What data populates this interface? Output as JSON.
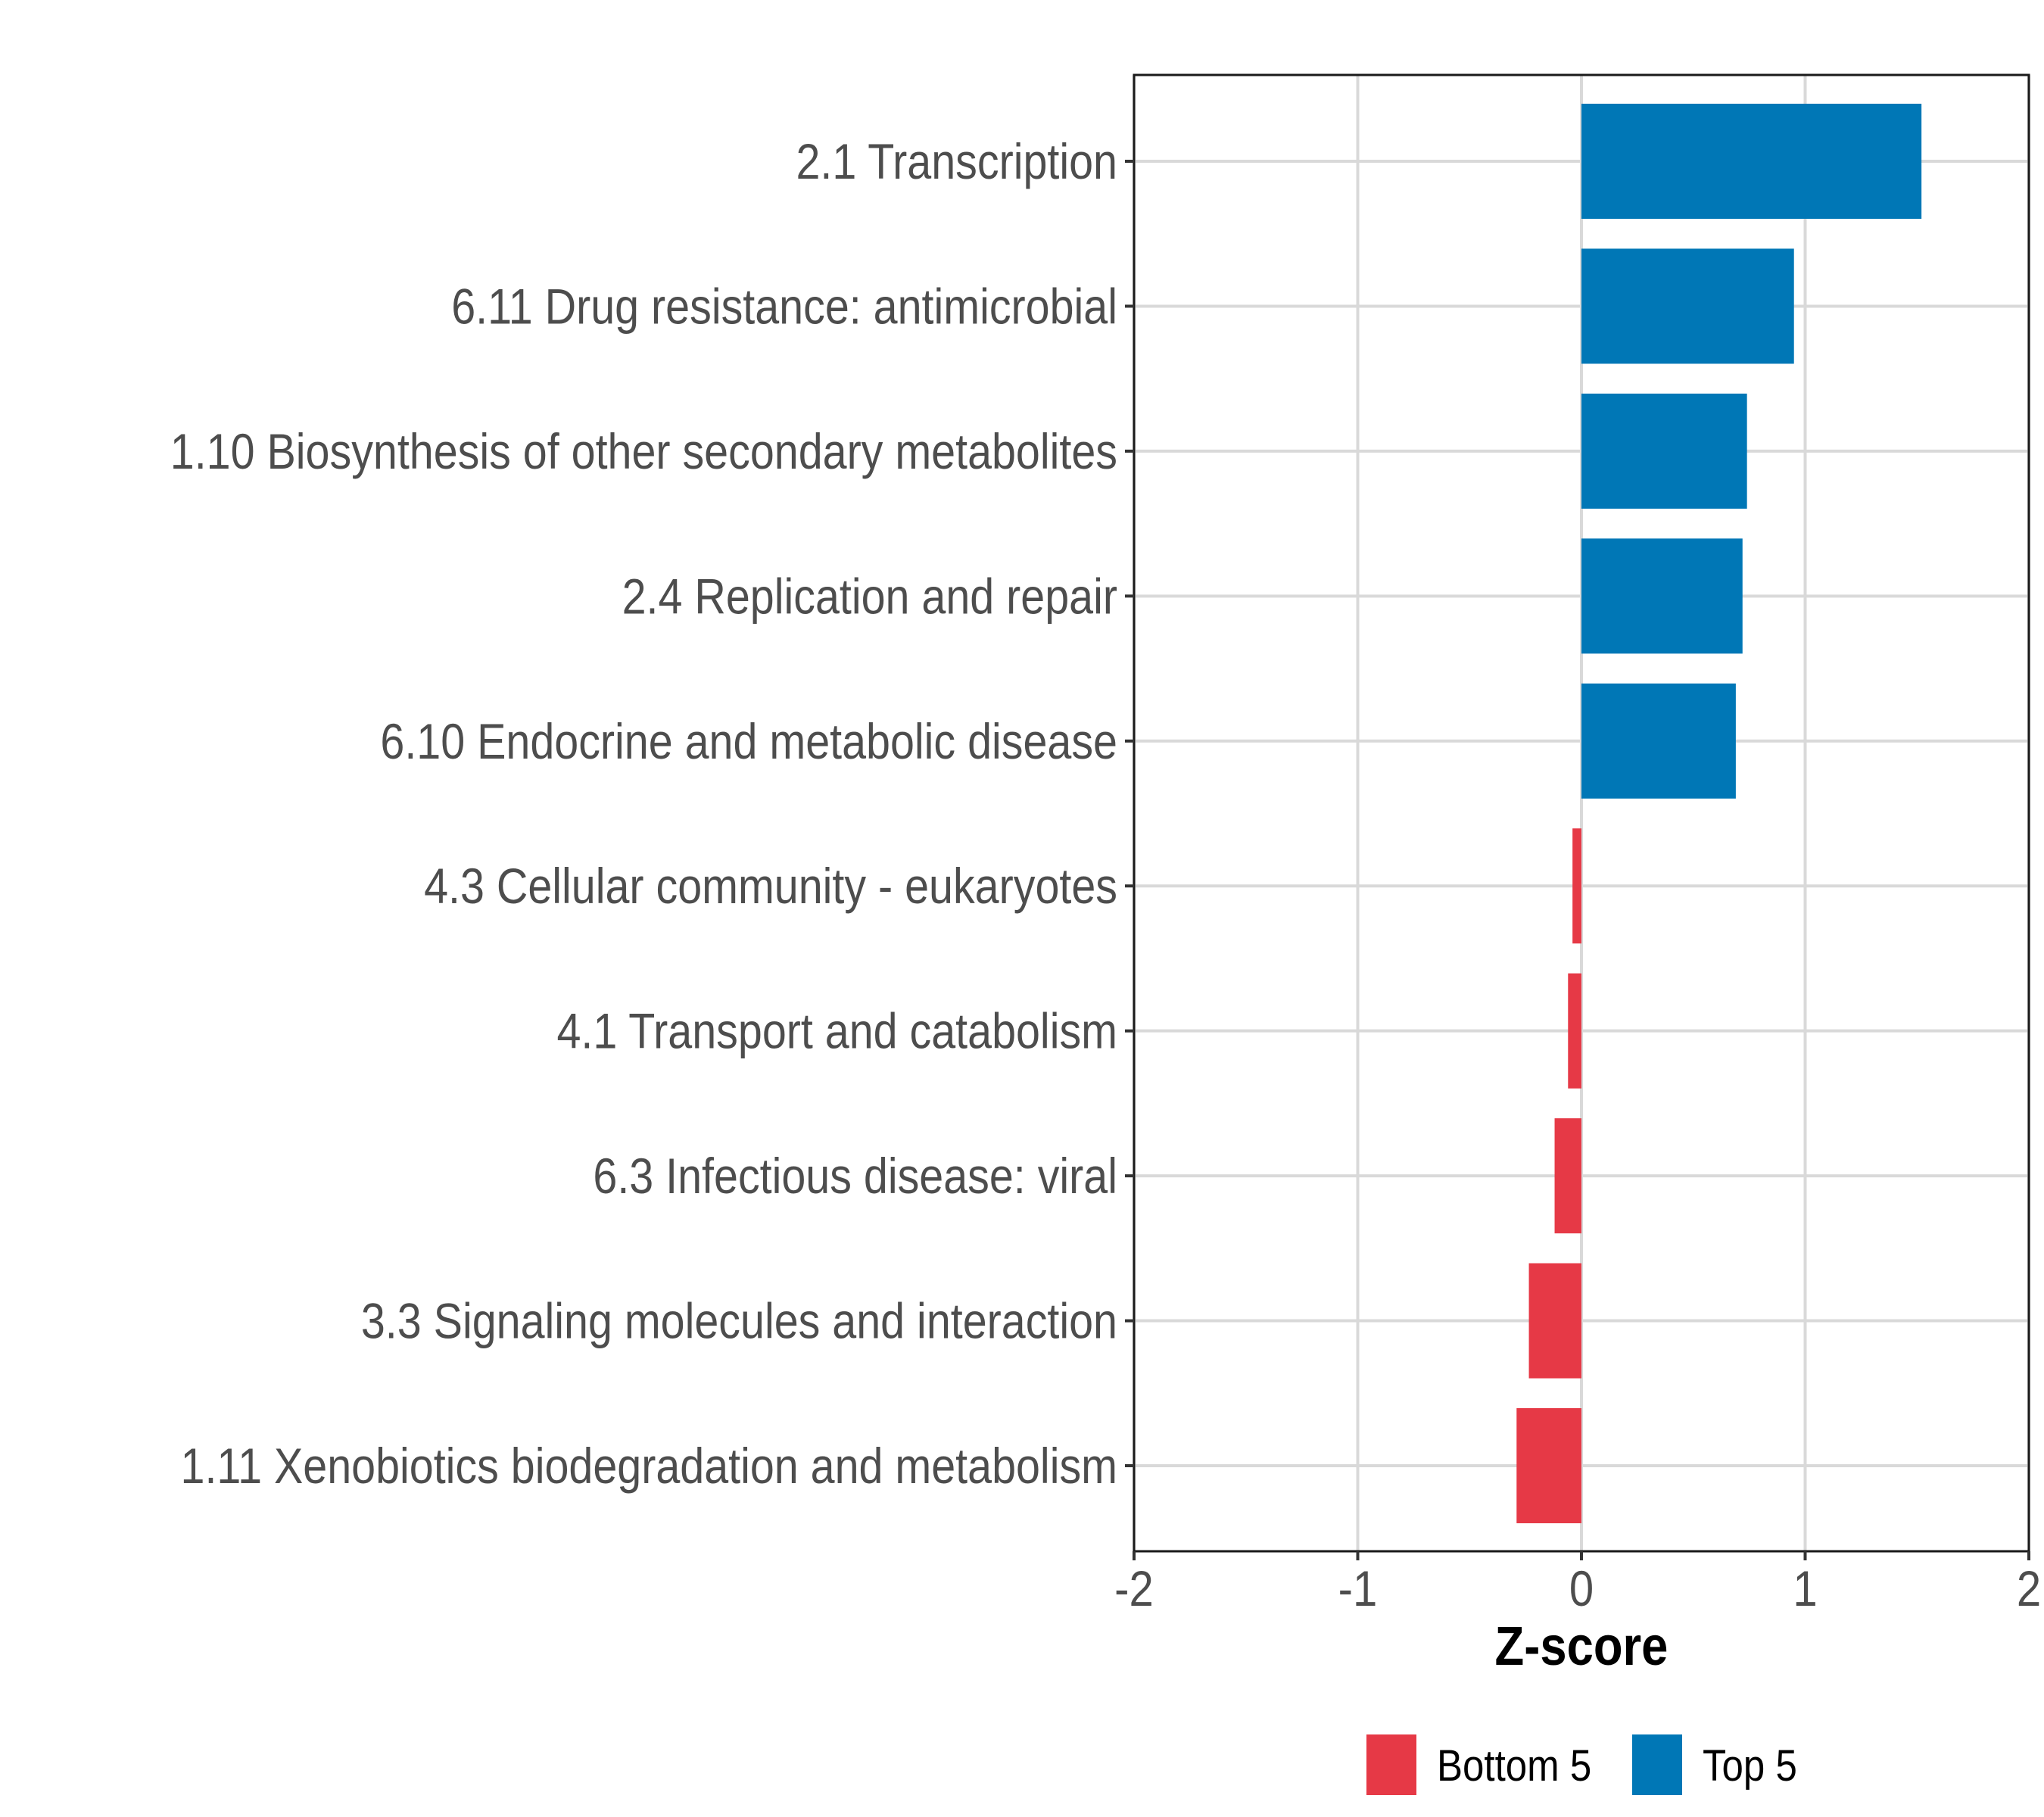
{
  "chart_data": {
    "type": "bar",
    "orientation": "horizontal",
    "title": "",
    "xlabel": "Z-score",
    "ylabel": "",
    "xlim": [
      -2,
      2
    ],
    "xticks": [
      -2,
      -1,
      0,
      1,
      2
    ],
    "xtick_labels": [
      "-2",
      "-1",
      "0",
      "1",
      "2"
    ],
    "grid": true,
    "categories": [
      "2.1 Transcription",
      "6.11 Drug resistance: antimicrobial",
      "1.10 Biosynthesis of other secondary metabolites",
      "2.4 Replication and repair",
      "6.10 Endocrine and metabolic disease",
      "4.3 Cellular community - eukaryotes",
      "4.1 Transport and catabolism",
      "6.3 Infectious disease: viral",
      "3.3 Signaling molecules and interaction",
      "1.11 Xenobiotics biodegradation and metabolism"
    ],
    "values": [
      1.52,
      0.95,
      0.74,
      0.72,
      0.69,
      -0.04,
      -0.06,
      -0.12,
      -0.235,
      -0.29
    ],
    "groups": [
      "Top 5",
      "Top 5",
      "Top 5",
      "Top 5",
      "Top 5",
      "Bottom 5",
      "Bottom 5",
      "Bottom 5",
      "Bottom 5",
      "Bottom 5"
    ],
    "legend": {
      "position": "bottom",
      "entries": [
        {
          "label": "Bottom 5",
          "color": "#e63946"
        },
        {
          "label": "Top 5",
          "color": "#0077b6"
        }
      ]
    },
    "colors": {
      "Top 5": "#0077b6",
      "Bottom 5": "#e63946"
    }
  }
}
